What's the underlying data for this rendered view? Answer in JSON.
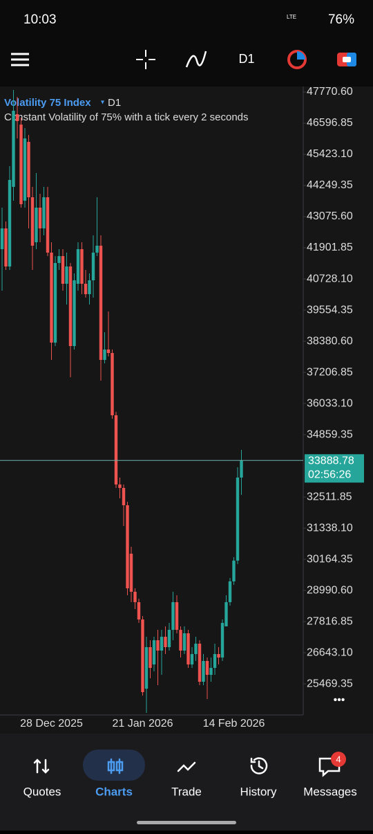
{
  "status_bar": {
    "time": "10:03",
    "network": "LTE",
    "battery": "76%"
  },
  "toolbar": {
    "timeframe": "D1"
  },
  "chart_data": {
    "type": "candlestick",
    "title": "Volatility 75 Index",
    "title_marker": "▾",
    "timeframe": "D1",
    "subtitle": "Constant Volatility of 75% with a tick every 2 seconds",
    "categories": [
      null,
      null,
      null,
      null,
      null,
      null,
      null,
      null,
      null,
      null,
      null,
      null,
      null,
      "28 Dec 2025",
      null,
      null,
      null,
      null,
      null,
      null,
      null,
      null,
      null,
      null,
      null,
      null,
      null,
      null,
      null,
      null,
      null,
      null,
      null,
      null,
      null,
      null,
      null,
      "21 Jan 2026",
      null,
      null,
      null,
      null,
      null,
      null,
      null,
      null,
      null,
      null,
      null,
      null,
      null,
      null,
      null,
      null,
      null,
      null,
      null,
      null,
      null,
      null,
      null,
      "14 Feb 2026",
      null,
      null
    ],
    "open": [
      41850,
      42633,
      41198,
      44197,
      46936,
      46545,
      43676,
      45893,
      43806,
      42111,
      43415,
      42633,
      43806,
      41720,
      38329,
      41329,
      41589,
      40546,
      41198,
      38199,
      40546,
      41850,
      40546,
      40155,
      40677,
      41720,
      41981,
      37677,
      38069,
      37938,
      35591,
      32983,
      32853,
      32201,
      30375,
      28941,
      28549,
      27897,
      25289,
      26854,
      26202,
      27115,
      26724,
      27245,
      26854,
      27506,
      28549,
      27506,
      26724,
      27376,
      26202,
      26593,
      26985,
      25550,
      26333,
      25811,
      26072,
      26593,
      26463,
      27637,
      28549,
      29332,
      30114,
      33244
    ],
    "high": [
      43415,
      42893,
      44980,
      47849,
      47588,
      46805,
      46414,
      46153,
      44197,
      44719,
      43937,
      44197,
      44197,
      42111,
      41589,
      41850,
      41850,
      41720,
      41329,
      40937,
      42111,
      42111,
      41068,
      40937,
      42372,
      43806,
      42372,
      38721,
      39503,
      38069,
      35721,
      33244,
      32983,
      32331,
      30636,
      29071,
      28680,
      28028,
      27245,
      27115,
      27245,
      27506,
      27506,
      27637,
      27767,
      28941,
      28810,
      27637,
      27637,
      27506,
      26854,
      27245,
      27115,
      26593,
      26463,
      26463,
      26985,
      26854,
      27897,
      28810,
      29462,
      30245,
      33635,
      34287
    ],
    "low": [
      40285,
      41068,
      41068,
      43676,
      46023,
      43415,
      43415,
      42633,
      41068,
      41850,
      42111,
      42372,
      41589,
      37677,
      38199,
      41068,
      40285,
      39764,
      37025,
      38069,
      40285,
      40155,
      40025,
      39764,
      40025,
      41589,
      36895,
      37547,
      37808,
      35461,
      32853,
      32461,
      31418,
      28810,
      28549,
      28289,
      27767,
      25029,
      24377,
      25681,
      25941,
      25420,
      25811,
      26593,
      26724,
      27115,
      27376,
      26463,
      26593,
      26072,
      26072,
      26333,
      25420,
      25420,
      24898,
      25550,
      25811,
      26202,
      26333,
      27637,
      28419,
      29201,
      29984,
      32592
    ],
    "close": [
      42633,
      41198,
      44458,
      47066,
      46675,
      43545,
      46023,
      43806,
      41981,
      43415,
      42633,
      43806,
      41720,
      38329,
      41329,
      41589,
      40546,
      41198,
      38199,
      40677,
      41850,
      40546,
      40155,
      40677,
      41720,
      41981,
      37677,
      38069,
      37938,
      35591,
      32983,
      32853,
      32201,
      29071,
      28941,
      28549,
      27897,
      25159,
      26854,
      26072,
      27115,
      26724,
      27245,
      26854,
      27506,
      28549,
      27506,
      26724,
      27376,
      26202,
      26593,
      26985,
      25550,
      26333,
      25811,
      26072,
      26593,
      26463,
      27767,
      28549,
      29332,
      30114,
      33244,
      33888.78
    ],
    "up_color": "#26a69a",
    "down_color": "#ef5350",
    "countdown": "02:56:26",
    "ylim": [
      24299,
      47979
    ],
    "yticks": [
      {
        "value": 47770.6,
        "label": "47770.60"
      },
      46596.85,
      {
        "value": 45423.1,
        "label": "45423.10"
      },
      44249.35,
      {
        "value": 43075.6,
        "label": "43075.60"
      },
      41901.85,
      {
        "value": 40728.1,
        "label": "40728.10"
      },
      39554.35,
      {
        "value": 38380.6,
        "label": "38380.60"
      },
      37206.85,
      {
        "value": 36033.1,
        "label": "36033.10"
      },
      34859.35,
      32511.85,
      {
        "value": 31338.1,
        "label": "31338.10"
      },
      30164.35,
      {
        "value": 28990.6,
        "label": "28990.60"
      },
      27816.85,
      {
        "value": 26643.1,
        "label": "26643.10"
      },
      25469.35
    ]
  },
  "nav": {
    "items": [
      "Quotes",
      "Charts",
      "Trade",
      "History",
      "Messages"
    ],
    "active": "Charts",
    "badge": "4"
  }
}
